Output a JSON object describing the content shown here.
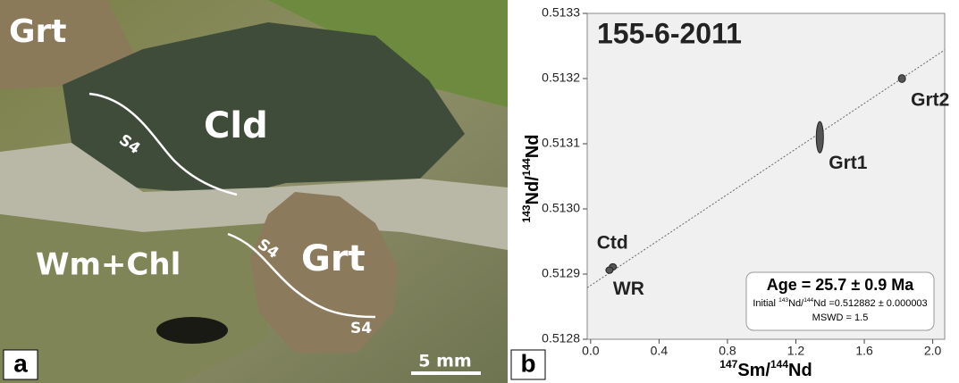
{
  "image": {
    "labels": [
      "Grt",
      "Cld",
      "S4",
      "S4",
      "S4",
      "Grt",
      "Wm+Chl"
    ],
    "scale_bar": "5 mm",
    "panel": "a"
  },
  "chart_data": {
    "type": "scatter",
    "panel": "b",
    "title": "155-6-2011",
    "xlabel": [
      "147",
      "Sm/",
      "144",
      "Nd"
    ],
    "ylabel": [
      "143",
      "Nd/",
      "144",
      "Nd"
    ],
    "points": [
      {
        "name": "Ctd",
        "x": 0.13,
        "y": 0.512911,
        "yerr": 5e-06
      },
      {
        "name": "WR",
        "x": 0.11,
        "y": 0.512906,
        "yerr": 5e-06
      },
      {
        "name": "Grt1",
        "x": 1.34,
        "y": 0.51311,
        "yerr": 2.4e-05
      },
      {
        "name": "Grt2",
        "x": 1.82,
        "y": 0.5132,
        "yerr": 6e-06
      }
    ],
    "isochron": {
      "x": [
        -0.02,
        2.07
      ],
      "y": [
        0.512879,
        0.513244
      ]
    },
    "color": "#555555",
    "xlim": [
      -0.02,
      2.07
    ],
    "ylim": [
      0.5128,
      0.5133
    ],
    "xticks": [
      {
        "value": 0,
        "label": "0.0"
      },
      0.4,
      0.8,
      1.2,
      1.6,
      {
        "value": 2,
        "label": "2.0"
      }
    ],
    "yticks": [
      0.5128,
      0.5129,
      {
        "value": 0.513,
        "label": "0.5130"
      },
      0.5131,
      0.5132,
      0.5133
    ],
    "results": {
      "age": "Age = 25.7 ± 0.9 Ma",
      "initial": [
        "Initial ",
        "143",
        "Nd/",
        "144",
        "Nd =0.512882 ± 0.000003"
      ],
      "mswd": "MSWD = 1.5"
    }
  }
}
